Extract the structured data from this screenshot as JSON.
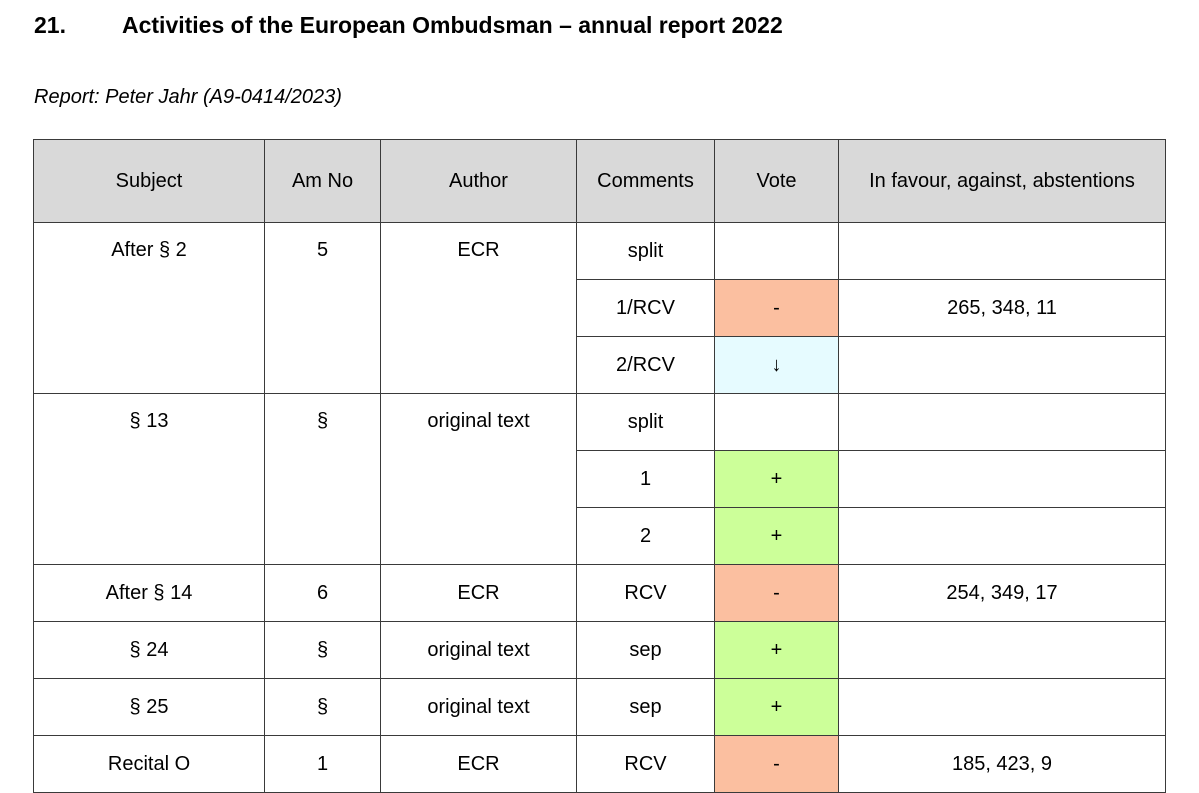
{
  "heading": {
    "number": "21.",
    "title": "Activities of the European Ombudsman – annual report 2022"
  },
  "report_line": "Report: Peter Jahr (A9-0414/2023)",
  "table": {
    "headers": [
      "Subject",
      "Am No",
      "Author",
      "Comments",
      "Vote",
      "In favour, against, abstentions"
    ],
    "groups": [
      {
        "subject": "After § 2",
        "am_no": "5",
        "author": "ECR",
        "rows": [
          {
            "comment": "split",
            "vote": "",
            "result": ""
          },
          {
            "comment": "1/RCV",
            "vote": "-",
            "result": "265, 348, 11"
          },
          {
            "comment": "2/RCV",
            "vote": "↓",
            "result": ""
          }
        ]
      },
      {
        "subject": "§ 13",
        "am_no": "§",
        "author": "original text",
        "rows": [
          {
            "comment": "split",
            "vote": "",
            "result": ""
          },
          {
            "comment": "1",
            "vote": "+",
            "result": ""
          },
          {
            "comment": "2",
            "vote": "+",
            "result": ""
          }
        ]
      },
      {
        "subject": "After § 14",
        "am_no": "6",
        "author": "ECR",
        "rows": [
          {
            "comment": "RCV",
            "vote": "-",
            "result": "254, 349, 17"
          }
        ]
      },
      {
        "subject": "§ 24",
        "am_no": "§",
        "author": "original text",
        "rows": [
          {
            "comment": "sep",
            "vote": "+",
            "result": ""
          }
        ]
      },
      {
        "subject": "§ 25",
        "am_no": "§",
        "author": "original text",
        "rows": [
          {
            "comment": "sep",
            "vote": "+",
            "result": ""
          }
        ]
      },
      {
        "subject": "Recital O",
        "am_no": "1",
        "author": "ECR",
        "rows": [
          {
            "comment": "RCV",
            "vote": "-",
            "result": "185, 423, 9"
          }
        ]
      }
    ]
  },
  "colors": {
    "header_bg": "#d9d9d9",
    "vote_rejected": "#fbbfa0",
    "vote_adopted": "#ccff99",
    "vote_lapsed": "#e6fbff",
    "border": "#3a3a3a"
  }
}
